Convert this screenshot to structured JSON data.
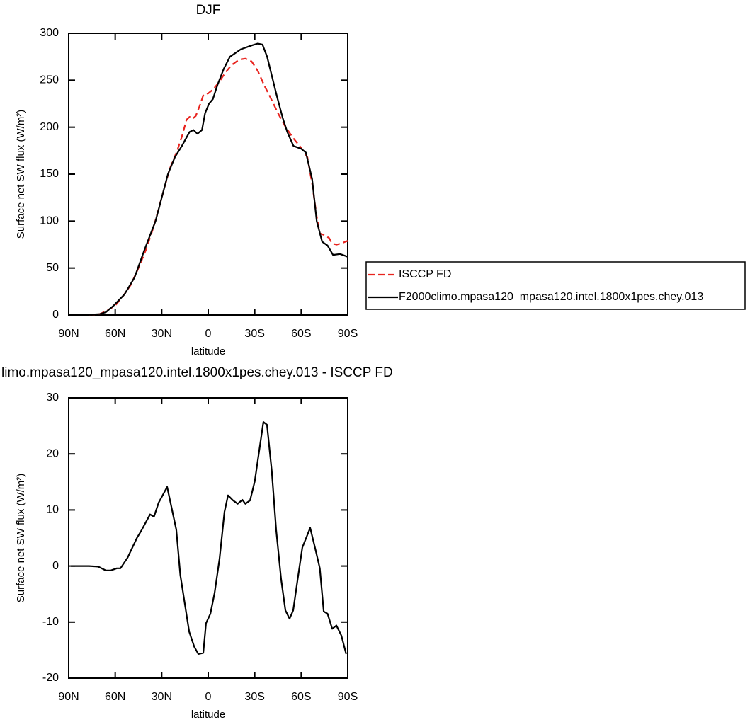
{
  "chart_data": [
    {
      "type": "line",
      "title": "DJF",
      "xlabel": "latitude",
      "ylabel": "Surface net SW flux (W/m²)",
      "xlim": [
        90,
        -90
      ],
      "xticks": [
        {
          "value": 90,
          "label": "90N"
        },
        {
          "value": 60,
          "label": "60N"
        },
        {
          "value": 30,
          "label": "30N"
        },
        0,
        {
          "value": -30,
          "label": "30S"
        },
        {
          "value": -60,
          "label": "60S"
        },
        {
          "value": -90,
          "label": "90S"
        }
      ],
      "ylim": [
        0,
        300
      ],
      "yticks": [
        0,
        50,
        100,
        150,
        200,
        250,
        300
      ],
      "legend": "right",
      "series": [
        {
          "name": "ISCCP FD",
          "color": "#e8241f",
          "dashed": true,
          "x": [
            90,
            80,
            70,
            65,
            60,
            55,
            50,
            45,
            40,
            35,
            30,
            25,
            20,
            17,
            14,
            12,
            10,
            8,
            5,
            3,
            0,
            -3,
            -7,
            -11,
            -15,
            -20,
            -24,
            -28,
            -32,
            -36,
            -40,
            -45,
            -50,
            -55,
            -60,
            -64,
            -67,
            -70,
            -72,
            -75,
            -78,
            -80,
            -83,
            -87,
            -90
          ],
          "values": [
            0,
            0,
            1,
            5,
            10,
            20,
            32,
            50,
            70,
            95,
            125,
            155,
            175,
            190,
            208,
            211,
            209,
            212,
            225,
            235,
            236,
            240,
            248,
            258,
            266,
            272,
            273,
            270,
            260,
            245,
            232,
            215,
            200,
            188,
            178,
            168,
            140,
            105,
            87,
            85,
            82,
            76,
            75,
            77,
            79
          ]
        },
        {
          "name": "F2000climo.mpasa120_mpasa120.intel.1800x1pes.chey.013",
          "color": "#000000",
          "dashed": false,
          "x": [
            90,
            80,
            70,
            66,
            61,
            54,
            47.5,
            41,
            34,
            26,
            21.5,
            17,
            12,
            9.5,
            7,
            4,
            2,
            -0.5,
            -3,
            -6,
            -10,
            -14,
            -21,
            -28,
            -32,
            -35,
            -38,
            -44,
            -48,
            -51,
            -55,
            -60,
            -63,
            -67,
            -70,
            -73.5,
            -77,
            -80.5,
            -85,
            -90
          ],
          "values": [
            0,
            0,
            1,
            3,
            10,
            22,
            40,
            70,
            100,
            150,
            168,
            180,
            195,
            197,
            193,
            197,
            215,
            225,
            230,
            245,
            262,
            275,
            283,
            287,
            289,
            288,
            275,
            235,
            210,
            195,
            180,
            177,
            173,
            145,
            100,
            78,
            74,
            64,
            65,
            62
          ]
        }
      ]
    },
    {
      "type": "line",
      "title": "limo.mpasa120_mpasa120.intel.1800x1pes.chey.013 - ISCCP FD",
      "xlabel": "latitude",
      "ylabel": "Surface net SW flux (W/m²)",
      "xlim": [
        90,
        -90
      ],
      "xticks": [
        {
          "value": 90,
          "label": "90N"
        },
        {
          "value": 60,
          "label": "60N"
        },
        {
          "value": 30,
          "label": "30N"
        },
        0,
        {
          "value": -30,
          "label": "30S"
        },
        {
          "value": -60,
          "label": "60S"
        },
        {
          "value": -90,
          "label": "90S"
        }
      ],
      "ylim": [
        -20,
        30
      ],
      "yticks": [
        -20,
        -10,
        0,
        10,
        20,
        30
      ],
      "series": [
        {
          "color": "#000000",
          "dashed": false,
          "x": [
            88.6,
            77,
            71,
            66,
            63,
            59,
            56.6,
            52,
            46,
            43,
            37.5,
            35,
            32,
            26.5,
            20.6,
            18,
            12.3,
            9,
            6.4,
            3.2,
            1.4,
            -1.4,
            -4.1,
            -7.3,
            -10.5,
            -12.8,
            -16,
            -19,
            -22,
            -24,
            -27,
            -30,
            -35.6,
            -37.9,
            -41,
            -43.8,
            -47,
            -49.8,
            -52.5,
            -54.8,
            -57.5,
            -60.7,
            -65.8,
            -69.4,
            -72,
            -74.5,
            -77,
            -80,
            -82.7,
            -85.9,
            -89
          ],
          "values": [
            0,
            0,
            -0.1,
            -0.8,
            -0.8,
            -0.4,
            -0.4,
            1.5,
            5,
            6.4,
            9.2,
            8.8,
            11.3,
            14.1,
            6.5,
            -1.6,
            -11.7,
            -14.4,
            -15.7,
            -15.5,
            -10.2,
            -8.5,
            -4.8,
            1.3,
            9.7,
            12.6,
            11.7,
            11.1,
            11.8,
            11.1,
            11.7,
            15.1,
            25.7,
            25.2,
            17,
            6.5,
            -2.3,
            -7.9,
            -9.4,
            -7.9,
            -2.7,
            3.3,
            6.8,
            2.7,
            -0.4,
            -8.1,
            -8.5,
            -11.2,
            -10.6,
            -12.4,
            -15.7
          ]
        }
      ]
    }
  ]
}
